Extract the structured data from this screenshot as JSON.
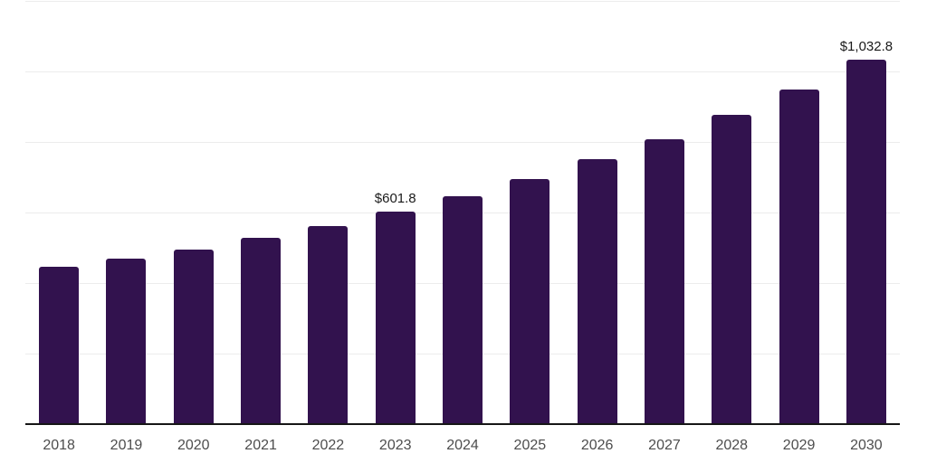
{
  "chart_data": {
    "type": "bar",
    "title": "",
    "categories": [
      "2018",
      "2019",
      "2020",
      "2021",
      "2022",
      "2023",
      "2024",
      "2025",
      "2026",
      "2027",
      "2028",
      "2029",
      "2030"
    ],
    "values": [
      445,
      469,
      494,
      529,
      561,
      601.8,
      646,
      695,
      751,
      809,
      877,
      950,
      1032.8
    ],
    "value_labels": [
      "",
      "",
      "",
      "",
      "",
      "$601.8",
      "",
      "",
      "",
      "",
      "",
      "",
      "$1,032.8"
    ],
    "xlabel": "",
    "ylabel": "",
    "ylim": [
      0,
      1200
    ],
    "gridline_interval": 200,
    "grid": true,
    "y_tick_labels_visible": false,
    "legend_position": "none",
    "colors": {
      "bar": "#32124E",
      "value_label": "#1A1A1A",
      "axis_label": "#4D4D4D",
      "gridline": "#ECECEC",
      "axis_line": "#161616",
      "background": "#FFFFFF"
    }
  }
}
